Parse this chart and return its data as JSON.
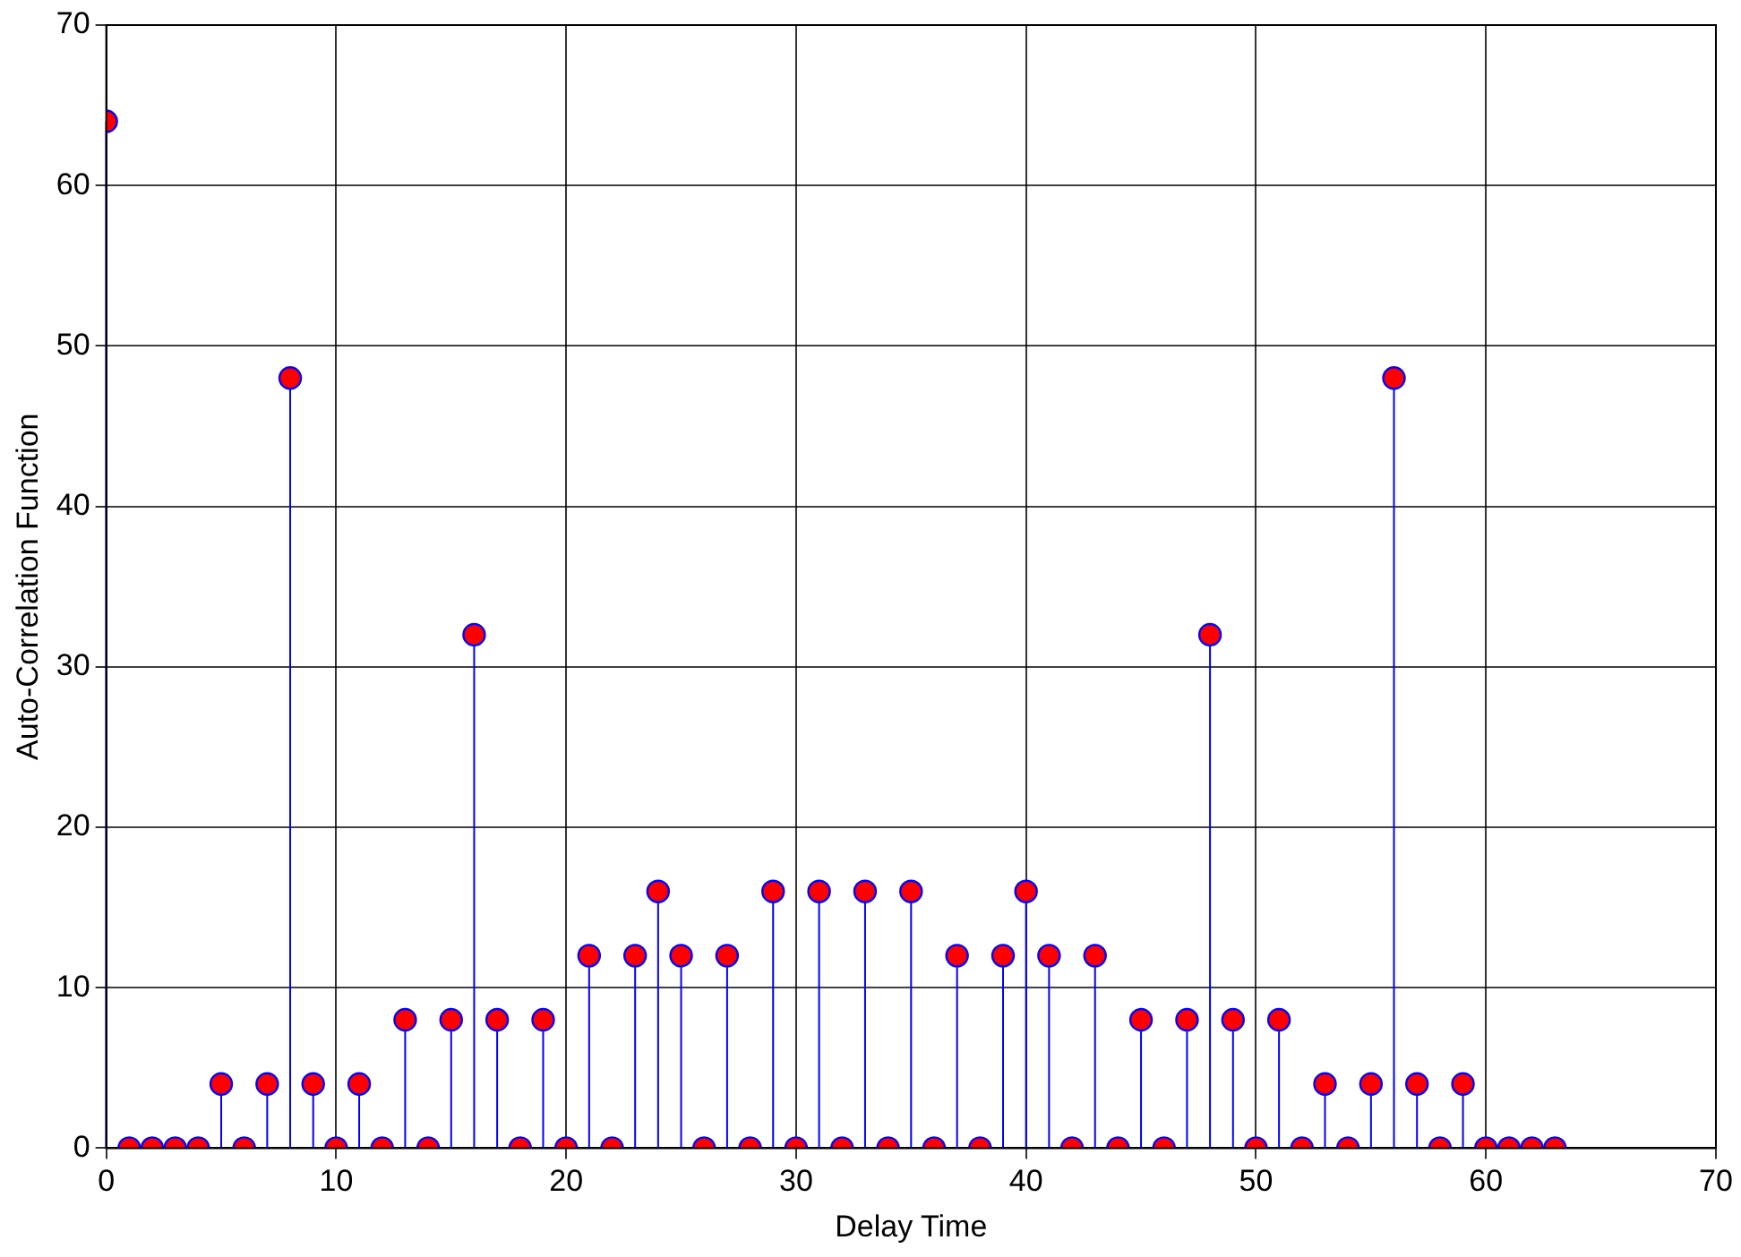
{
  "chart_data": {
    "type": "lollipop",
    "xlabel": "Delay Time",
    "ylabel": "Auto-Correlation Function",
    "x": [
      0,
      1,
      2,
      3,
      4,
      5,
      6,
      7,
      8,
      9,
      10,
      11,
      12,
      13,
      14,
      15,
      16,
      17,
      18,
      19,
      20,
      21,
      22,
      23,
      24,
      25,
      26,
      27,
      28,
      29,
      30,
      31,
      32,
      33,
      34,
      35,
      36,
      37,
      38,
      39,
      40,
      41,
      42,
      43,
      44,
      45,
      46,
      47,
      48,
      49,
      50,
      51,
      52,
      53,
      54,
      55,
      56,
      57,
      58,
      59,
      60,
      61,
      62,
      63
    ],
    "series": [
      {
        "color": "#ff0000",
        "values": [
          64,
          0,
          0,
          0,
          0,
          4,
          0,
          4,
          48,
          4,
          0,
          4,
          0,
          8,
          0,
          8,
          32,
          8,
          0,
          8,
          0,
          12,
          0,
          12,
          16,
          12,
          0,
          12,
          0,
          16,
          0,
          16,
          0,
          16,
          0,
          16,
          0,
          12,
          0,
          12,
          16,
          12,
          0,
          12,
          0,
          8,
          0,
          8,
          32,
          8,
          0,
          8,
          0,
          4,
          0,
          4,
          48,
          4,
          0,
          4,
          0,
          0,
          0,
          0
        ]
      }
    ],
    "xlim": [
      0,
      70
    ],
    "xticks": [
      0,
      10,
      20,
      30,
      40,
      50,
      60,
      70
    ],
    "ylim": [
      0,
      70
    ],
    "yticks": [
      0,
      10,
      20,
      30,
      40,
      50,
      60,
      70
    ],
    "grid": true,
    "marker": "circle"
  }
}
